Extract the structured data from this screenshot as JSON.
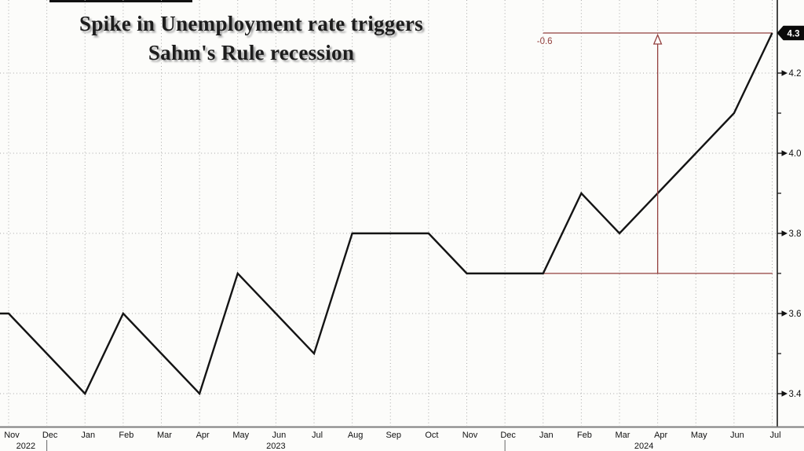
{
  "header": {
    "title_line1": "Spike in Unemployment rate triggers",
    "title_line2": "Sahm's Rule recession"
  },
  "chart_data": {
    "type": "line",
    "title": "Spike in Unemployment rate triggers Sahm's Rule recession",
    "x_labels": [
      "Nov",
      "Dec",
      "Jan",
      "Feb",
      "Mar",
      "Apr",
      "May",
      "Jun",
      "Jul",
      "Aug",
      "Sep",
      "Oct",
      "Nov",
      "Dec",
      "Jan",
      "Feb",
      "Mar",
      "Apr",
      "May",
      "Jun",
      "Jul"
    ],
    "year_labels": [
      {
        "text": "2022",
        "at_month_index": 0.45
      },
      {
        "text": "2023",
        "at_month_index": 7
      },
      {
        "text": "2024",
        "at_month_index": 16.64
      }
    ],
    "year_divider_month_indices": [
      1,
      13
    ],
    "values": [
      3.6,
      3.5,
      3.4,
      3.6,
      3.5,
      3.4,
      3.7,
      3.6,
      3.5,
      3.8,
      3.8,
      3.8,
      3.7,
      3.7,
      3.7,
      3.9,
      3.8,
      3.9,
      4.0,
      4.1,
      4.3
    ],
    "y_axis": {
      "major_ticks": [
        3.4,
        3.6,
        3.8,
        4.0,
        4.2
      ],
      "minor_ticks": [
        3.5,
        3.7,
        3.9,
        4.1
      ],
      "last_value_badge": "4.3",
      "ylim": [
        3.32,
        4.38
      ],
      "side": "right"
    },
    "grid": "dotted",
    "legend": "none",
    "annotations": {
      "delta_label": "-0.6",
      "upper_line_value": 4.3,
      "lower_line_value": 3.7,
      "lines_start_month_index": 14,
      "arrow_month_index": 17
    }
  },
  "colors": {
    "background": "#fcfcfa",
    "line": "#141414",
    "annotation_red": "#93403e",
    "grid": "#a8a8a8",
    "axis_spine": "#1a1a1a",
    "x_axis_line": "#7e7e7e",
    "tick_text": "#111111",
    "badge_bg": "#0a0a0a",
    "badge_text": "#ffffff"
  }
}
